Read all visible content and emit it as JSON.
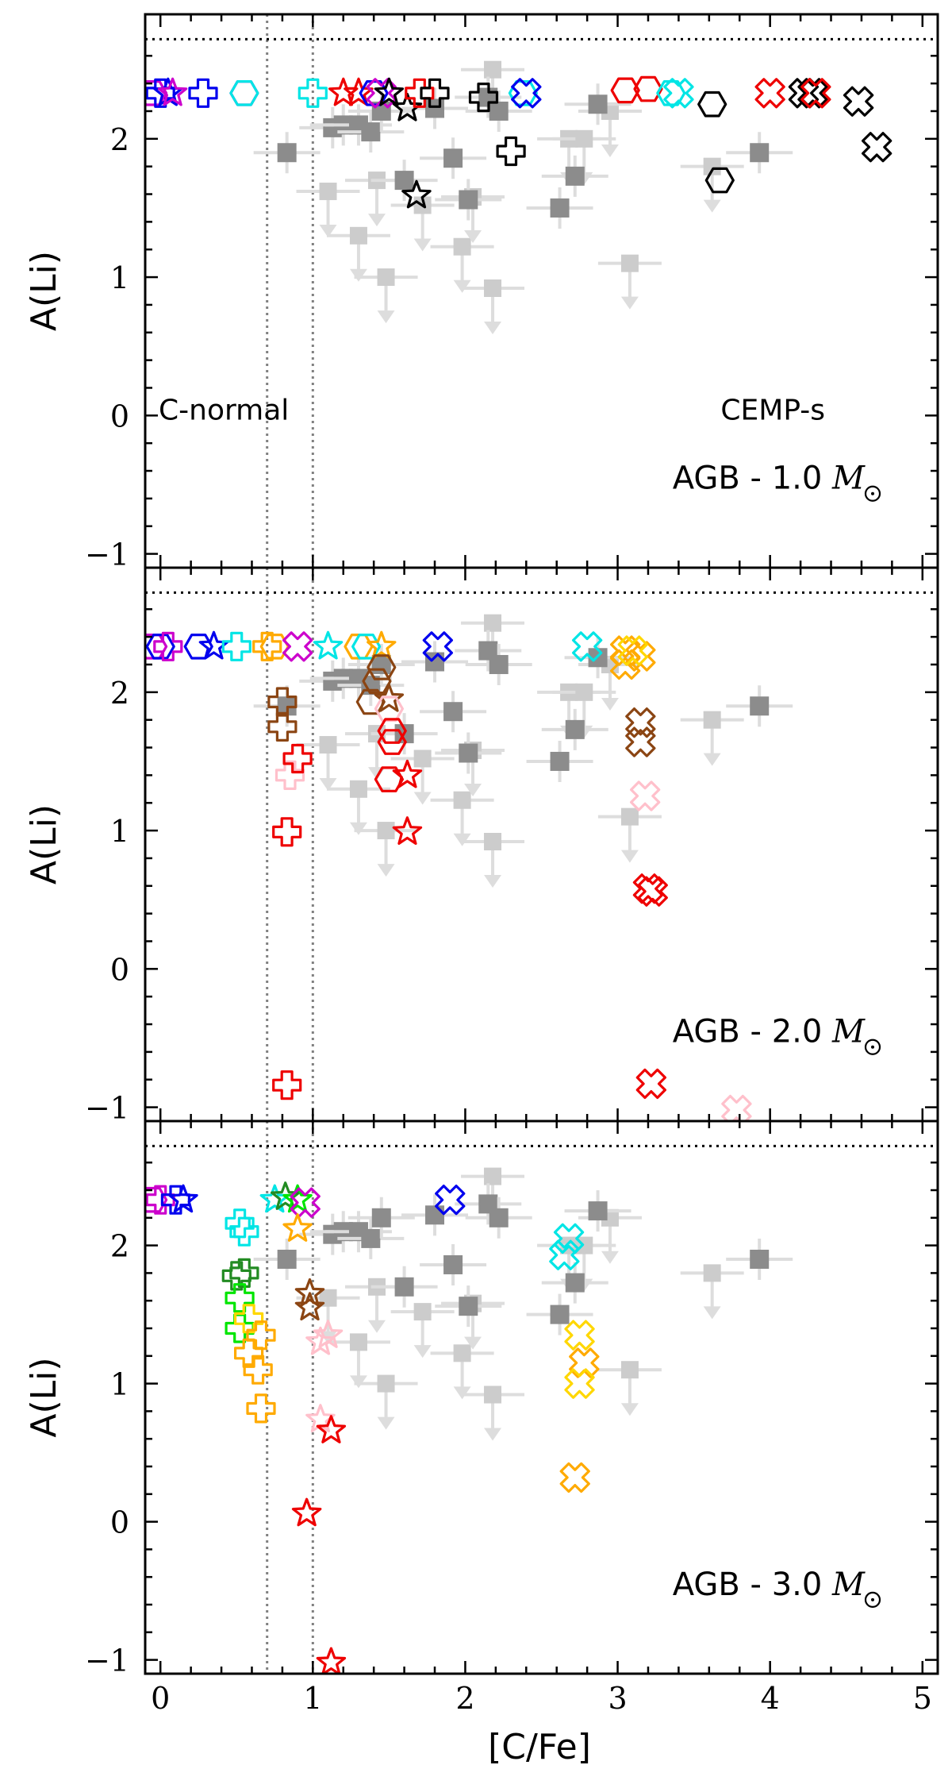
{
  "chart_data": {
    "type": "scatter",
    "xlabel": "[C/Fe]",
    "ylabel": "A(Li)",
    "xlim": [
      -0.1,
      5.1
    ],
    "ylim": [
      -1.1,
      2.9
    ],
    "x_ticks": [
      "0",
      "1",
      "2",
      "3",
      "4",
      "5"
    ],
    "y_ticks": [
      "−1",
      "0",
      "1",
      "2"
    ],
    "vertical_reference_lines": [
      0.7,
      1.0
    ],
    "horizontal_reference_line": 2.72,
    "region_labels": {
      "left": "C-normal",
      "right": "CEMP-s"
    },
    "panel_label_prefix": "AGB - ",
    "panel_label_unit": "M",
    "observed_detections": [
      {
        "x": 0.83,
        "y": 1.9
      },
      {
        "x": 1.13,
        "y": 2.08
      },
      {
        "x": 1.2,
        "y": 2.1
      },
      {
        "x": 1.3,
        "y": 2.1
      },
      {
        "x": 1.38,
        "y": 2.05
      },
      {
        "x": 1.45,
        "y": 2.2
      },
      {
        "x": 1.6,
        "y": 1.7
      },
      {
        "x": 1.8,
        "y": 2.22
      },
      {
        "x": 1.92,
        "y": 1.86
      },
      {
        "x": 2.02,
        "y": 1.56
      },
      {
        "x": 2.15,
        "y": 2.3
      },
      {
        "x": 2.22,
        "y": 2.2
      },
      {
        "x": 2.62,
        "y": 1.5
      },
      {
        "x": 2.72,
        "y": 1.73
      },
      {
        "x": 2.87,
        "y": 2.25
      },
      {
        "x": 3.93,
        "y": 1.9
      }
    ],
    "observed_upper_limits": [
      {
        "x": 1.1,
        "y": 1.62
      },
      {
        "x": 1.3,
        "y": 1.3
      },
      {
        "x": 1.42,
        "y": 1.7
      },
      {
        "x": 1.48,
        "y": 1.0
      },
      {
        "x": 1.72,
        "y": 1.52
      },
      {
        "x": 1.98,
        "y": 1.22
      },
      {
        "x": 2.05,
        "y": 1.58
      },
      {
        "x": 2.18,
        "y": 0.92
      },
      {
        "x": 2.18,
        "y": 2.5
      },
      {
        "x": 2.68,
        "y": 2.0
      },
      {
        "x": 2.78,
        "y": 2.0
      },
      {
        "x": 2.95,
        "y": 2.2
      },
      {
        "x": 3.08,
        "y": 1.1
      },
      {
        "x": 3.62,
        "y": 1.8
      }
    ],
    "panels": [
      {
        "mass": "1.0",
        "points": [
          {
            "x": -0.05,
            "y": 2.33,
            "m": "hexagon",
            "c": "#cc00cc"
          },
          {
            "x": 0.0,
            "y": 2.33,
            "m": "plus",
            "c": "#0000ee"
          },
          {
            "x": 0.05,
            "y": 2.33,
            "m": "star",
            "c": "#0000ee"
          },
          {
            "x": 0.08,
            "y": 2.33,
            "m": "star",
            "c": "#cc00cc"
          },
          {
            "x": 0.28,
            "y": 2.33,
            "m": "plus",
            "c": "#0000ee"
          },
          {
            "x": 0.55,
            "y": 2.33,
            "m": "hexagon",
            "c": "#cc00cc"
          },
          {
            "x": 0.55,
            "y": 2.33,
            "m": "hexagon",
            "c": "#00e5e5"
          },
          {
            "x": 1.0,
            "y": 2.33,
            "m": "plus",
            "c": "#00e5e5"
          },
          {
            "x": 1.2,
            "y": 2.33,
            "m": "star",
            "c": "#ee0000"
          },
          {
            "x": 1.3,
            "y": 2.33,
            "m": "star",
            "c": "#ee0000"
          },
          {
            "x": 1.4,
            "y": 2.33,
            "m": "hexagon",
            "c": "#0000ee"
          },
          {
            "x": 1.45,
            "y": 2.33,
            "m": "cross",
            "c": "#cc00cc"
          },
          {
            "x": 1.5,
            "y": 2.33,
            "m": "star",
            "c": "#000000"
          },
          {
            "x": 1.62,
            "y": 2.22,
            "m": "star",
            "c": "#000000"
          },
          {
            "x": 1.7,
            "y": 2.33,
            "m": "plus",
            "c": "#ee0000"
          },
          {
            "x": 1.8,
            "y": 2.33,
            "m": "plus",
            "c": "#000000"
          },
          {
            "x": 1.68,
            "y": 1.59,
            "m": "star",
            "c": "#000000"
          },
          {
            "x": 2.12,
            "y": 2.3,
            "m": "plus",
            "c": "#000000"
          },
          {
            "x": 2.3,
            "y": 1.91,
            "m": "plus",
            "c": "#000000"
          },
          {
            "x": 2.38,
            "y": 2.33,
            "m": "hexagon",
            "c": "#00e5e5"
          },
          {
            "x": 2.4,
            "y": 2.33,
            "m": "cross",
            "c": "#0000ee"
          },
          {
            "x": 3.05,
            "y": 2.35,
            "m": "hexagon",
            "c": "#ee0000"
          },
          {
            "x": 3.2,
            "y": 2.36,
            "m": "hexagon",
            "c": "#ee0000"
          },
          {
            "x": 3.35,
            "y": 2.33,
            "m": "hexagon",
            "c": "#00e5e5"
          },
          {
            "x": 3.4,
            "y": 2.33,
            "m": "cross",
            "c": "#00e5e5"
          },
          {
            "x": 3.62,
            "y": 2.25,
            "m": "hexagon",
            "c": "#000000"
          },
          {
            "x": 3.67,
            "y": 1.7,
            "m": "hexagon",
            "c": "#000000"
          },
          {
            "x": 4.0,
            "y": 2.33,
            "m": "cross",
            "c": "#ee0000"
          },
          {
            "x": 4.22,
            "y": 2.33,
            "m": "cross",
            "c": "#000000"
          },
          {
            "x": 4.28,
            "y": 2.33,
            "m": "cross",
            "c": "#000000"
          },
          {
            "x": 4.3,
            "y": 2.33,
            "m": "cross",
            "c": "#ee0000"
          },
          {
            "x": 4.58,
            "y": 2.27,
            "m": "cross",
            "c": "#000000"
          },
          {
            "x": 4.7,
            "y": 1.94,
            "m": "cross",
            "c": "#000000"
          }
        ]
      },
      {
        "mass": "2.0",
        "points": [
          {
            "x": -0.05,
            "y": 2.33,
            "m": "hexagon",
            "c": "#cc00cc"
          },
          {
            "x": 0.0,
            "y": 2.33,
            "m": "hexagon",
            "c": "#0000ee"
          },
          {
            "x": 0.05,
            "y": 2.33,
            "m": "plus",
            "c": "#cc00cc"
          },
          {
            "x": 0.25,
            "y": 2.33,
            "m": "hexagon",
            "c": "#0000ee"
          },
          {
            "x": 0.35,
            "y": 2.33,
            "m": "star",
            "c": "#0000ee"
          },
          {
            "x": 0.5,
            "y": 2.33,
            "m": "plus",
            "c": "#00e5e5"
          },
          {
            "x": 0.7,
            "y": 2.33,
            "m": "plus",
            "c": "#ffaa00"
          },
          {
            "x": 0.75,
            "y": 2.33,
            "m": "hexagon",
            "c": "#ffaa00"
          },
          {
            "x": 0.9,
            "y": 2.33,
            "m": "cross",
            "c": "#cc00cc"
          },
          {
            "x": 1.1,
            "y": 2.33,
            "m": "star",
            "c": "#00e5e5"
          },
          {
            "x": 1.3,
            "y": 2.33,
            "m": "hexagon",
            "c": "#ffaa00"
          },
          {
            "x": 1.35,
            "y": 2.33,
            "m": "hexagon",
            "c": "#00e5e5"
          },
          {
            "x": 1.45,
            "y": 2.33,
            "m": "star",
            "c": "#ffaa00"
          },
          {
            "x": 0.8,
            "y": 1.93,
            "m": "plus",
            "c": "#8b4513"
          },
          {
            "x": 0.8,
            "y": 1.75,
            "m": "plus",
            "c": "#8b4513"
          },
          {
            "x": 0.85,
            "y": 1.4,
            "m": "plus",
            "c": "#ffc0cb"
          },
          {
            "x": 0.9,
            "y": 1.52,
            "m": "plus",
            "c": "#ee0000"
          },
          {
            "x": 0.83,
            "y": 0.99,
            "m": "plus",
            "c": "#ee0000"
          },
          {
            "x": 0.83,
            "y": -0.84,
            "m": "plus",
            "c": "#ee0000"
          },
          {
            "x": 1.45,
            "y": 2.18,
            "m": "hexagon",
            "c": "#8b4513"
          },
          {
            "x": 1.42,
            "y": 2.08,
            "m": "hexagon",
            "c": "#8b4513"
          },
          {
            "x": 1.38,
            "y": 1.93,
            "m": "hexagon",
            "c": "#8b4513"
          },
          {
            "x": 1.5,
            "y": 1.95,
            "m": "star",
            "c": "#8b4513"
          },
          {
            "x": 1.5,
            "y": 1.88,
            "m": "hexagon",
            "c": "#ffc0cb"
          },
          {
            "x": 1.52,
            "y": 1.72,
            "m": "hexagon",
            "c": "#ee0000"
          },
          {
            "x": 1.52,
            "y": 1.64,
            "m": "hexagon",
            "c": "#ee0000"
          },
          {
            "x": 1.5,
            "y": 1.37,
            "m": "hexagon",
            "c": "#ee0000"
          },
          {
            "x": 1.62,
            "y": 1.4,
            "m": "star",
            "c": "#ee0000"
          },
          {
            "x": 1.62,
            "y": 0.99,
            "m": "star",
            "c": "#ee0000"
          },
          {
            "x": 1.82,
            "y": 2.33,
            "m": "cross",
            "c": "#0000ee"
          },
          {
            "x": 2.8,
            "y": 2.33,
            "m": "cross",
            "c": "#00e5e5"
          },
          {
            "x": 3.05,
            "y": 2.3,
            "m": "cross",
            "c": "#ffaa00"
          },
          {
            "x": 3.05,
            "y": 2.2,
            "m": "cross",
            "c": "#ffaa00"
          },
          {
            "x": 3.15,
            "y": 2.26,
            "m": "cross",
            "c": "#ffaa00"
          },
          {
            "x": 3.1,
            "y": 2.3,
            "m": "cross",
            "c": "#ffd700"
          },
          {
            "x": 3.15,
            "y": 1.78,
            "m": "cross",
            "c": "#8b4513"
          },
          {
            "x": 3.15,
            "y": 1.64,
            "m": "cross",
            "c": "#8b4513"
          },
          {
            "x": 3.18,
            "y": 1.25,
            "m": "cross",
            "c": "#ffc0cb"
          },
          {
            "x": 3.2,
            "y": 0.58,
            "m": "cross",
            "c": "#ee0000"
          },
          {
            "x": 3.23,
            "y": 0.56,
            "m": "cross",
            "c": "#ee0000"
          },
          {
            "x": 3.22,
            "y": -0.83,
            "m": "cross",
            "c": "#ee0000"
          },
          {
            "x": 3.78,
            "y": -1.02,
            "m": "cross",
            "c": "#ffc0cb"
          }
        ]
      },
      {
        "mass": "3.0",
        "points": [
          {
            "x": -0.05,
            "y": 2.33,
            "m": "hexagon",
            "c": "#cc00cc"
          },
          {
            "x": 0.0,
            "y": 2.33,
            "m": "plus",
            "c": "#cc00cc"
          },
          {
            "x": 0.1,
            "y": 2.33,
            "m": "plus",
            "c": "#0000ee"
          },
          {
            "x": 0.15,
            "y": 2.33,
            "m": "star",
            "c": "#0000ee"
          },
          {
            "x": 0.52,
            "y": 2.16,
            "m": "plus",
            "c": "#00e5e5"
          },
          {
            "x": 0.55,
            "y": 2.1,
            "m": "plus",
            "c": "#00e5e5"
          },
          {
            "x": 0.5,
            "y": 1.78,
            "m": "plus",
            "c": "#228b22"
          },
          {
            "x": 0.55,
            "y": 1.8,
            "m": "plus",
            "c": "#228b22"
          },
          {
            "x": 0.52,
            "y": 1.62,
            "m": "plus",
            "c": "#00e500"
          },
          {
            "x": 0.52,
            "y": 1.4,
            "m": "plus",
            "c": "#00e500"
          },
          {
            "x": 0.58,
            "y": 1.47,
            "m": "plus",
            "c": "#ffd700"
          },
          {
            "x": 0.58,
            "y": 1.22,
            "m": "plus",
            "c": "#ffaa00"
          },
          {
            "x": 0.66,
            "y": 1.35,
            "m": "plus",
            "c": "#ffaa00"
          },
          {
            "x": 0.64,
            "y": 1.1,
            "m": "plus",
            "c": "#ffaa00"
          },
          {
            "x": 0.66,
            "y": 0.82,
            "m": "plus",
            "c": "#ffaa00"
          },
          {
            "x": 0.75,
            "y": 2.33,
            "m": "star",
            "c": "#00e5e5"
          },
          {
            "x": 0.82,
            "y": 2.35,
            "m": "star",
            "c": "#228b22"
          },
          {
            "x": 0.9,
            "y": 2.33,
            "m": "star",
            "c": "#00e500"
          },
          {
            "x": 0.95,
            "y": 2.31,
            "m": "cross",
            "c": "#cc00cc"
          },
          {
            "x": 0.9,
            "y": 2.12,
            "m": "star",
            "c": "#ffaa00"
          },
          {
            "x": 0.98,
            "y": 1.65,
            "m": "star",
            "c": "#8b4513"
          },
          {
            "x": 0.98,
            "y": 1.55,
            "m": "star",
            "c": "#8b4513"
          },
          {
            "x": 1.05,
            "y": 1.3,
            "m": "star",
            "c": "#ffc0cb"
          },
          {
            "x": 1.1,
            "y": 1.35,
            "m": "star",
            "c": "#ffc0cb"
          },
          {
            "x": 1.05,
            "y": 0.74,
            "m": "star",
            "c": "#ffc0cb"
          },
          {
            "x": 1.12,
            "y": 0.66,
            "m": "star",
            "c": "#ee0000"
          },
          {
            "x": 0.96,
            "y": 0.06,
            "m": "star",
            "c": "#ee0000"
          },
          {
            "x": 1.12,
            "y": -1.02,
            "m": "star",
            "c": "#ee0000"
          },
          {
            "x": 1.9,
            "y": 2.33,
            "m": "cross",
            "c": "#0000ee"
          },
          {
            "x": 2.68,
            "y": 2.05,
            "m": "cross",
            "c": "#00e5e5"
          },
          {
            "x": 2.65,
            "y": 1.93,
            "m": "cross",
            "c": "#00e5e5"
          },
          {
            "x": 2.75,
            "y": 1.35,
            "m": "cross",
            "c": "#ffd700"
          },
          {
            "x": 2.78,
            "y": 1.15,
            "m": "cross",
            "c": "#ffaa00"
          },
          {
            "x": 2.75,
            "y": 1.0,
            "m": "cross",
            "c": "#ffd700"
          },
          {
            "x": 2.72,
            "y": 0.32,
            "m": "cross",
            "c": "#ffaa00"
          }
        ]
      }
    ]
  }
}
